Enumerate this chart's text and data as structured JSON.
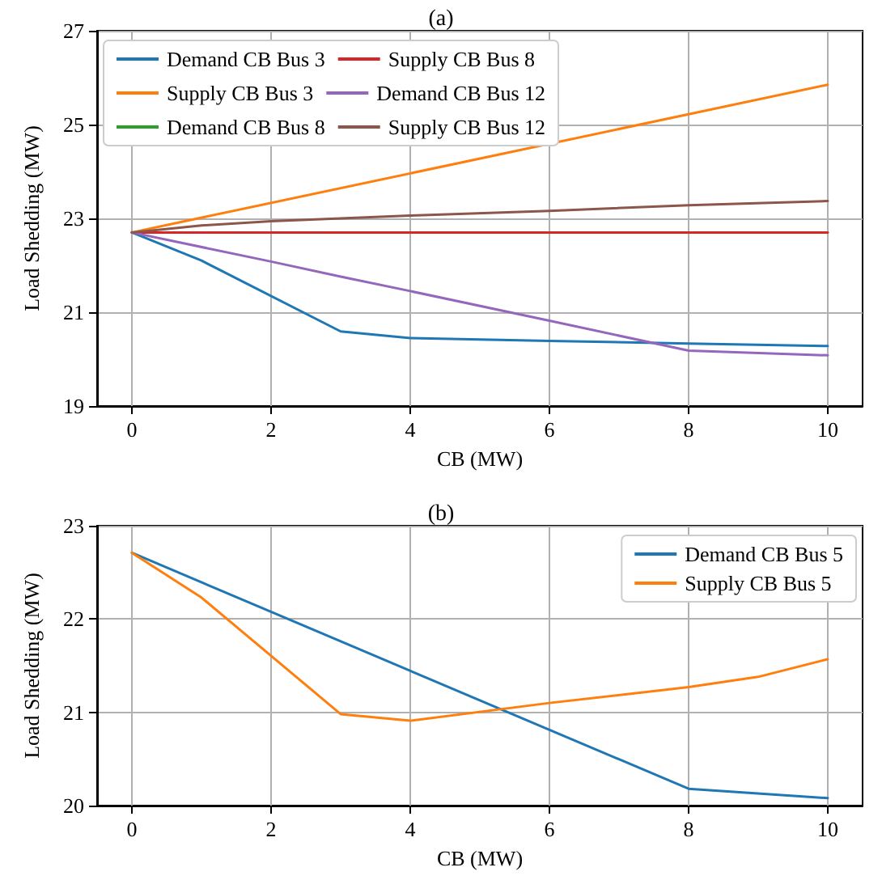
{
  "chart_data": [
    {
      "type": "line",
      "title": "(a)",
      "xlabel": "CB (MW)",
      "ylabel": "Load Shedding (MW)",
      "xlim": [
        -0.5,
        10.5
      ],
      "xticks": [
        0,
        2,
        4,
        6,
        8,
        10
      ],
      "ylim": [
        19,
        27
      ],
      "yticks": [
        19,
        21,
        23,
        25,
        27
      ],
      "grid": true,
      "legend": "top left",
      "marker": "none",
      "line_style": "solid",
      "series": [
        {
          "name": "Demand CB Bus 3",
          "color": "#1f77b4",
          "x": [
            0,
            1,
            3,
            4,
            6,
            8,
            10
          ],
          "values": [
            22.7,
            22.1,
            20.59,
            20.45,
            20.39,
            20.33,
            20.28
          ]
        },
        {
          "name": "Supply CB Bus 3",
          "color": "#ff7f0e",
          "x": [
            0,
            10
          ],
          "values": [
            22.7,
            25.85
          ]
        },
        {
          "name": "Demand CB Bus 8",
          "color": "#2ca02c"
        },
        {
          "name": "Supply CB Bus 8",
          "color": "#d62728",
          "x": [
            0,
            10
          ],
          "values": [
            22.7,
            22.7
          ]
        },
        {
          "name": "Demand CB Bus 12",
          "color": "#9467bd",
          "x": [
            0,
            2,
            3,
            4,
            6,
            8,
            10
          ],
          "values": [
            22.7,
            22.08,
            21.76,
            21.45,
            20.82,
            20.18,
            20.08
          ]
        },
        {
          "name": "Supply CB Bus 12",
          "color": "#8c564b",
          "x": [
            0,
            1,
            2,
            4,
            6,
            8,
            10
          ],
          "values": [
            22.7,
            22.85,
            22.94,
            23.06,
            23.16,
            23.28,
            23.37
          ]
        }
      ]
    },
    {
      "type": "line",
      "title": "(b)",
      "xlabel": "CB (MW)",
      "ylabel": "Load Shedding (MW)",
      "xlim": [
        -0.5,
        10.5
      ],
      "xticks": [
        0,
        2,
        4,
        6,
        8,
        10
      ],
      "ylim": [
        20,
        23
      ],
      "yticks": [
        20,
        21,
        22,
        23
      ],
      "grid": true,
      "legend": "top right",
      "marker": "none",
      "line_style": "solid",
      "series": [
        {
          "name": "Demand CB Bus 5",
          "color": "#1f77b4",
          "x": [
            0,
            8,
            10
          ],
          "values": [
            22.71,
            20.18,
            20.08
          ]
        },
        {
          "name": "Supply CB Bus 5",
          "color": "#ff7f0e",
          "x": [
            0,
            1,
            3,
            4,
            6,
            8,
            9,
            10
          ],
          "values": [
            22.71,
            22.23,
            20.98,
            20.91,
            21.1,
            21.27,
            21.38,
            21.57
          ]
        }
      ]
    }
  ]
}
